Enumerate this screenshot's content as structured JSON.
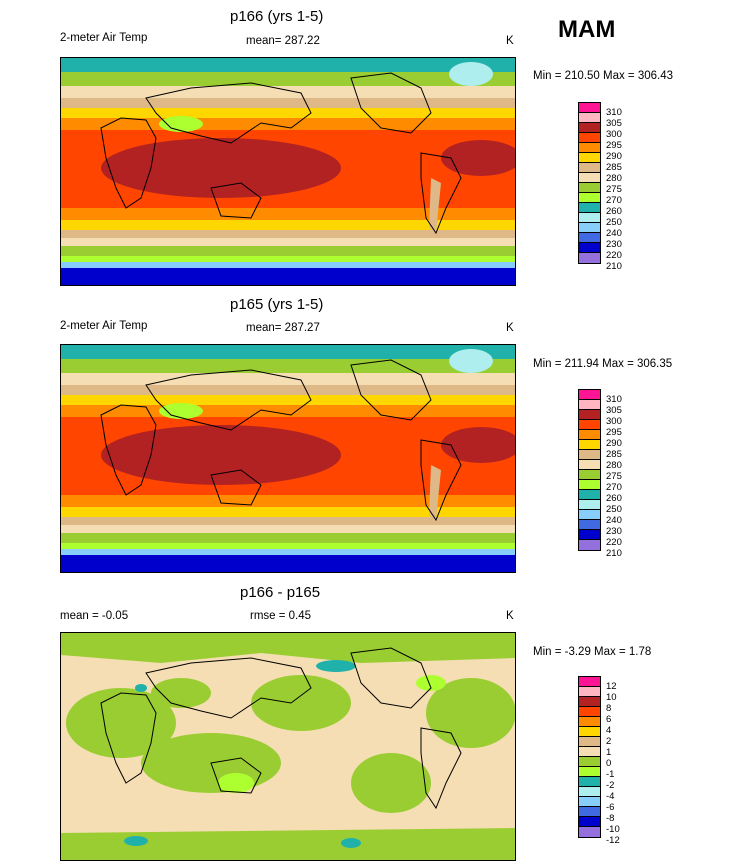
{
  "season": "MAM",
  "panels": [
    {
      "title": "p166 (yrs 1-5)",
      "left_label": "2-meter Air Temp",
      "center_label": "mean= 287.22",
      "units": "K",
      "minmax": "Min = 210.50 Max = 306.43",
      "levels": [
        "310",
        "305",
        "300",
        "295",
        "290",
        "285",
        "280",
        "275",
        "270",
        "260",
        "250",
        "240",
        "230",
        "220",
        "210"
      ]
    },
    {
      "title": "p165 (yrs 1-5)",
      "left_label": "2-meter Air Temp",
      "center_label": "mean= 287.27",
      "units": "K",
      "minmax": "Min = 211.94 Max = 306.35",
      "levels": [
        "310",
        "305",
        "300",
        "295",
        "290",
        "285",
        "280",
        "275",
        "270",
        "260",
        "250",
        "240",
        "230",
        "220",
        "210"
      ]
    },
    {
      "title": "p166 - p165",
      "left_label": "mean =  -0.05",
      "center_label": "rmse =   0.45",
      "units": "K",
      "minmax": "Min =  -3.29 Max =   1.78",
      "levels": [
        "12",
        "10",
        "8",
        "6",
        "4",
        "2",
        "1",
        "0",
        "-1",
        "-2",
        "-4",
        "-6",
        "-8",
        "-10",
        "-12"
      ]
    }
  ],
  "colors": {
    "scale": [
      "#ff1493",
      "#ffb6c1",
      "#b22222",
      "#ff4500",
      "#ff8c00",
      "#ffd700",
      "#deb887",
      "#f5deb3",
      "#9acd32",
      "#adff2f",
      "#20b2aa",
      "#afeeee",
      "#87cefa",
      "#4169e1",
      "#0000cd",
      "#9370db"
    ],
    "diff_bg": "#f5deb3",
    "diff_green": "#9acd32",
    "diff_light": "#adff2f",
    "diff_teal": "#20b2aa"
  }
}
